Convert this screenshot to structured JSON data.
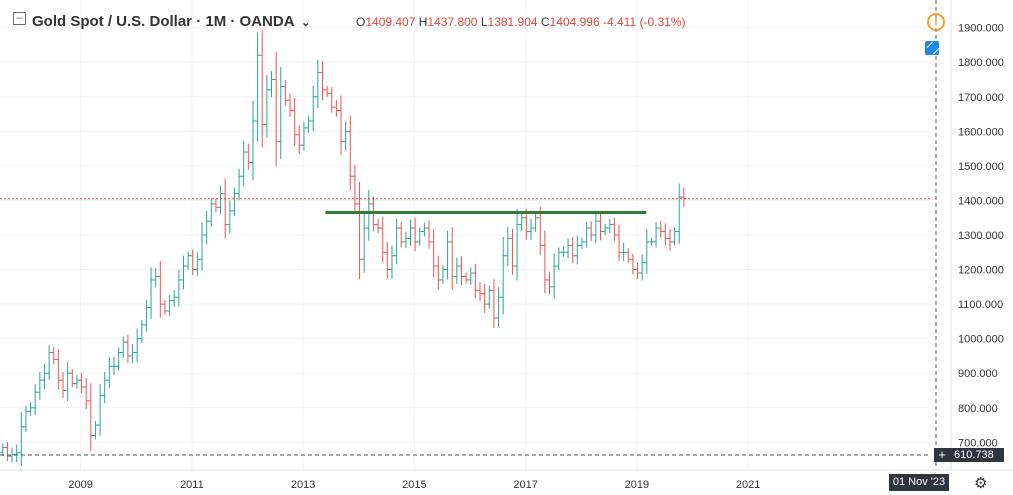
{
  "header": {
    "collapse_icon": "minus-square-icon",
    "symbol": "Gold Spot / U.S. Dollar",
    "interval": "1M",
    "source": "OANDA",
    "ohlc": {
      "o_label": "O",
      "o": "1409.407",
      "h_label": "H",
      "h": "1437.800",
      "l_label": "L",
      "l": "1381.904",
      "c_label": "C",
      "c": "1404.996",
      "change": "-4.411 (-0.31%)"
    },
    "alert_icon": "alert-clock-icon",
    "sidebar_icon": "blue-square-icon"
  },
  "overlay": {
    "crosshair_price": "610.738",
    "crosshair_date": "01 Nov '23",
    "settings_icon": "gear-icon"
  },
  "colors": {
    "up": "#26a69a",
    "down": "#ef5350",
    "trendline": "#2e7d32",
    "price_line": "#e53935",
    "grid": "#f0f3fa"
  },
  "chart_data": {
    "type": "ohlc",
    "interval": "1M",
    "ylim": [
      620,
      1980
    ],
    "y_ticks": [
      "1900.000",
      "1800.000",
      "1700.000",
      "1600.000",
      "1500.000",
      "1400.000",
      "1300.000",
      "1200.000",
      "1100.000",
      "1000.000",
      "900.000",
      "800.000",
      "700.000"
    ],
    "y_tick_values": [
      1900,
      1800,
      1700,
      1600,
      1500,
      1400,
      1300,
      1200,
      1100,
      1000,
      900,
      800,
      700
    ],
    "x_ticks": [
      "2009",
      "2011",
      "2013",
      "2015",
      "2017",
      "2019",
      "2021"
    ],
    "x_tick_years": [
      2009,
      2011,
      2013,
      2015,
      2017,
      2019,
      2021
    ],
    "xlim": [
      2007.55,
      2024.27
    ],
    "current_price": 1404.996,
    "support_resistance_line": {
      "x": [
        2013.4,
        2019.17
      ],
      "y": 1365
    },
    "bars": {
      "start": 2007.6,
      "step": 0.0833,
      "close": [
        685,
        660,
        665,
        670,
        745,
        790,
        800,
        845,
        880,
        900,
        960,
        940,
        880,
        850,
        900,
        870,
        880,
        860,
        820,
        720,
        750,
        835,
        880,
        920,
        920,
        960,
        990,
        950,
        960,
        1000,
        1040,
        1090,
        1170,
        1180,
        1100,
        1080,
        1110,
        1120,
        1170,
        1210,
        1240,
        1200,
        1230,
        1300,
        1340,
        1390,
        1380,
        1420,
        1330,
        1370,
        1420,
        1470,
        1540,
        1510,
        1630,
        1820,
        1620,
        1720,
        1750,
        1570,
        1730,
        1690,
        1660,
        1590,
        1560,
        1610,
        1630,
        1700,
        1770,
        1720,
        1710,
        1670,
        1660,
        1570,
        1600,
        1470,
        1390,
        1230,
        1320,
        1390,
        1330,
        1320,
        1250,
        1200,
        1240,
        1320,
        1280,
        1290,
        1320,
        1280,
        1310,
        1320,
        1280,
        1210,
        1170,
        1200,
        1280,
        1180,
        1210,
        1180,
        1170,
        1190,
        1140,
        1130,
        1100,
        1140,
        1060,
        1120,
        1240,
        1290,
        1210,
        1330,
        1350,
        1310,
        1320,
        1350,
        1270,
        1170,
        1150,
        1210,
        1250,
        1250,
        1270,
        1240,
        1270,
        1280,
        1320,
        1300,
        1340,
        1310,
        1320,
        1330,
        1300,
        1250,
        1250,
        1230,
        1200,
        1190,
        1220,
        1280,
        1280,
        1320,
        1310,
        1290,
        1280,
        1310,
        1410,
        1404.996
      ]
    }
  }
}
